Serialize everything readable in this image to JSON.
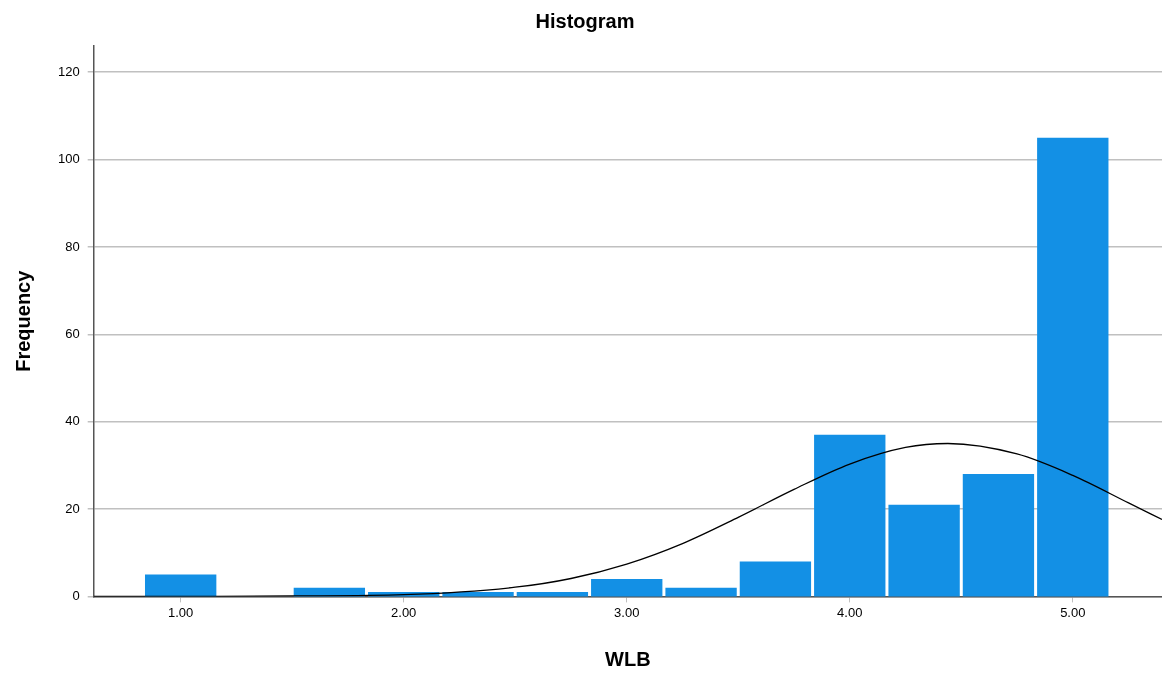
{
  "chart_data": {
    "type": "histogram",
    "title": "Histogram",
    "xlabel": "WLB",
    "ylabel": "Frequency",
    "bins": [
      0.8333,
      1.1667,
      1.5,
      1.8333,
      2.1667,
      2.5,
      2.8333,
      3.1667,
      3.5,
      3.8333,
      4.1667,
      4.5,
      4.8333,
      5.1667
    ],
    "values": [
      5,
      0,
      2,
      1,
      1,
      1,
      4,
      2,
      8,
      37,
      21,
      28,
      105
    ],
    "color": "#1390e5",
    "series": [
      {
        "type": "line",
        "color": "#000000",
        "x": [
          0.61,
          1.0,
          1.5,
          2.0,
          2.5,
          2.75,
          3.0,
          3.25,
          3.5,
          3.75,
          4.0,
          4.25,
          4.44,
          4.75,
          5.0,
          5.25,
          5.4
        ],
        "values": [
          0,
          0,
          0.1,
          0.4,
          2.1,
          4.1,
          7.4,
          12.1,
          18.1,
          24.5,
          30.3,
          34.1,
          35,
          32.6,
          27.7,
          21.4,
          17.6
        ]
      }
    ],
    "xlim": [
      0.61,
      5.4
    ],
    "xticks": [
      {
        "value": 1,
        "label": "1.00"
      },
      {
        "value": 2,
        "label": "2.00"
      },
      {
        "value": 3,
        "label": "3.00"
      },
      {
        "value": 4,
        "label": "4.00"
      },
      {
        "value": 5,
        "label": "5.00"
      }
    ],
    "ylim": [
      0,
      126
    ],
    "yticks": [
      0,
      20,
      40,
      60,
      80,
      100,
      120
    ],
    "grid": "y",
    "legend": false,
    "marker": "none"
  }
}
